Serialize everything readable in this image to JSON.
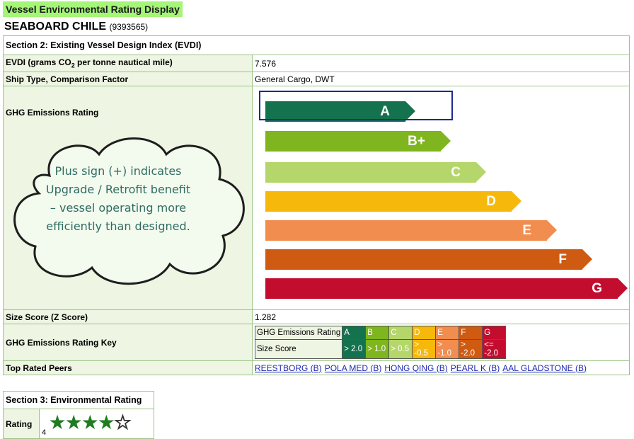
{
  "title": "Vessel Environmental Rating Display",
  "ship": {
    "name": "SEABOARD CHILE",
    "imo": "(9393565)"
  },
  "section2": {
    "header": "Section 2: Existing Vessel Design Index (EVDI)",
    "evdi_label_pre": "EVDI (grams CO",
    "evdi_label_sub": "2",
    "evdi_label_post": " per tonne nautical mile)",
    "evdi_value": "7.576",
    "ship_type_label": "Ship Type, Comparison Factor",
    "ship_type_value": "General Cargo, DWT",
    "ghg_label": "GHG Emissions Rating",
    "bars": [
      {
        "letter": "A",
        "color": "#15724f"
      },
      {
        "letter": "B+",
        "color": "#7fb51e"
      },
      {
        "letter": "C",
        "color": "#b4d66a"
      },
      {
        "letter": "D",
        "color": "#f6b80a"
      },
      {
        "letter": "E",
        "color": "#f18d4f"
      },
      {
        "letter": "F",
        "color": "#cf5b12"
      },
      {
        "letter": "G",
        "color": "#c20d2e"
      }
    ],
    "selected_rating": "B+",
    "callout": "Plus sign (+) indicates Upgrade / Retrofit benefit – vessel operating more efficiently than designed.",
    "size_score_label": "Size Score (Z Score)",
    "size_score_value": "1.282",
    "key_label": "GHG Emissions Rating Key",
    "key": {
      "row1_label": "GHG Emissions Rating",
      "row2_label": "Size Score",
      "letters": [
        "A",
        "B",
        "C",
        "D",
        "E",
        "F",
        "G"
      ],
      "scores": [
        "> 2.0",
        "> 1.0",
        "> 0.5",
        "> -0.5",
        "> -1.0",
        "> -2.0",
        "<= -2.0"
      ],
      "colors": [
        "#15724f",
        "#7fb51e",
        "#b4d66a",
        "#f6b80a",
        "#f18d4f",
        "#cf5b12",
        "#c20d2e"
      ]
    },
    "peers_label": "Top Rated Peers",
    "peers": [
      "REESTBORG (B)",
      "POLA MED (B)",
      "HONG QING (B)",
      "PEARL K (B)",
      "AAL GLADSTONE (B)"
    ]
  },
  "section3": {
    "header": "Section 3: Environmental Rating",
    "rating_label": "Rating",
    "rating_value": "4",
    "stars_filled": 4,
    "stars_total": 5
  }
}
